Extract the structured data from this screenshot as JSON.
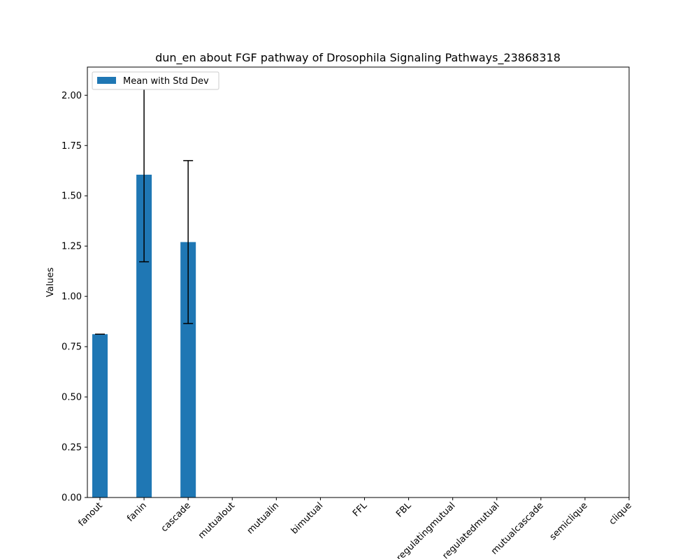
{
  "chart_data": {
    "type": "bar",
    "title": "dun_en about FGF pathway of Drosophila Signaling Pathways_23868318",
    "xlabel": "",
    "ylabel": "Values",
    "categories": [
      "fanout",
      "fanin",
      "cascade",
      "mutualout",
      "mutualin",
      "bimutual",
      "FFL",
      "FBL",
      "regulatingmutual",
      "regulatedmutual",
      "mutualcascade",
      "semiclique",
      "clique"
    ],
    "series": [
      {
        "name": "Mean with Std Dev",
        "values": [
          0.812,
          1.605,
          1.27,
          0,
          0,
          0,
          0,
          0,
          0,
          0,
          0,
          0,
          0
        ],
        "errors": [
          0.0,
          0.433,
          0.405,
          0,
          0,
          0,
          0,
          0,
          0,
          0,
          0,
          0,
          0
        ],
        "color": "#1f77b4"
      }
    ],
    "ylim": [
      0,
      2.14
    ],
    "yticks": [
      "0.00",
      "0.25",
      "0.50",
      "0.75",
      "1.00",
      "1.25",
      "1.50",
      "1.75",
      "2.00"
    ],
    "grid": false,
    "legend_position": "top-left"
  }
}
